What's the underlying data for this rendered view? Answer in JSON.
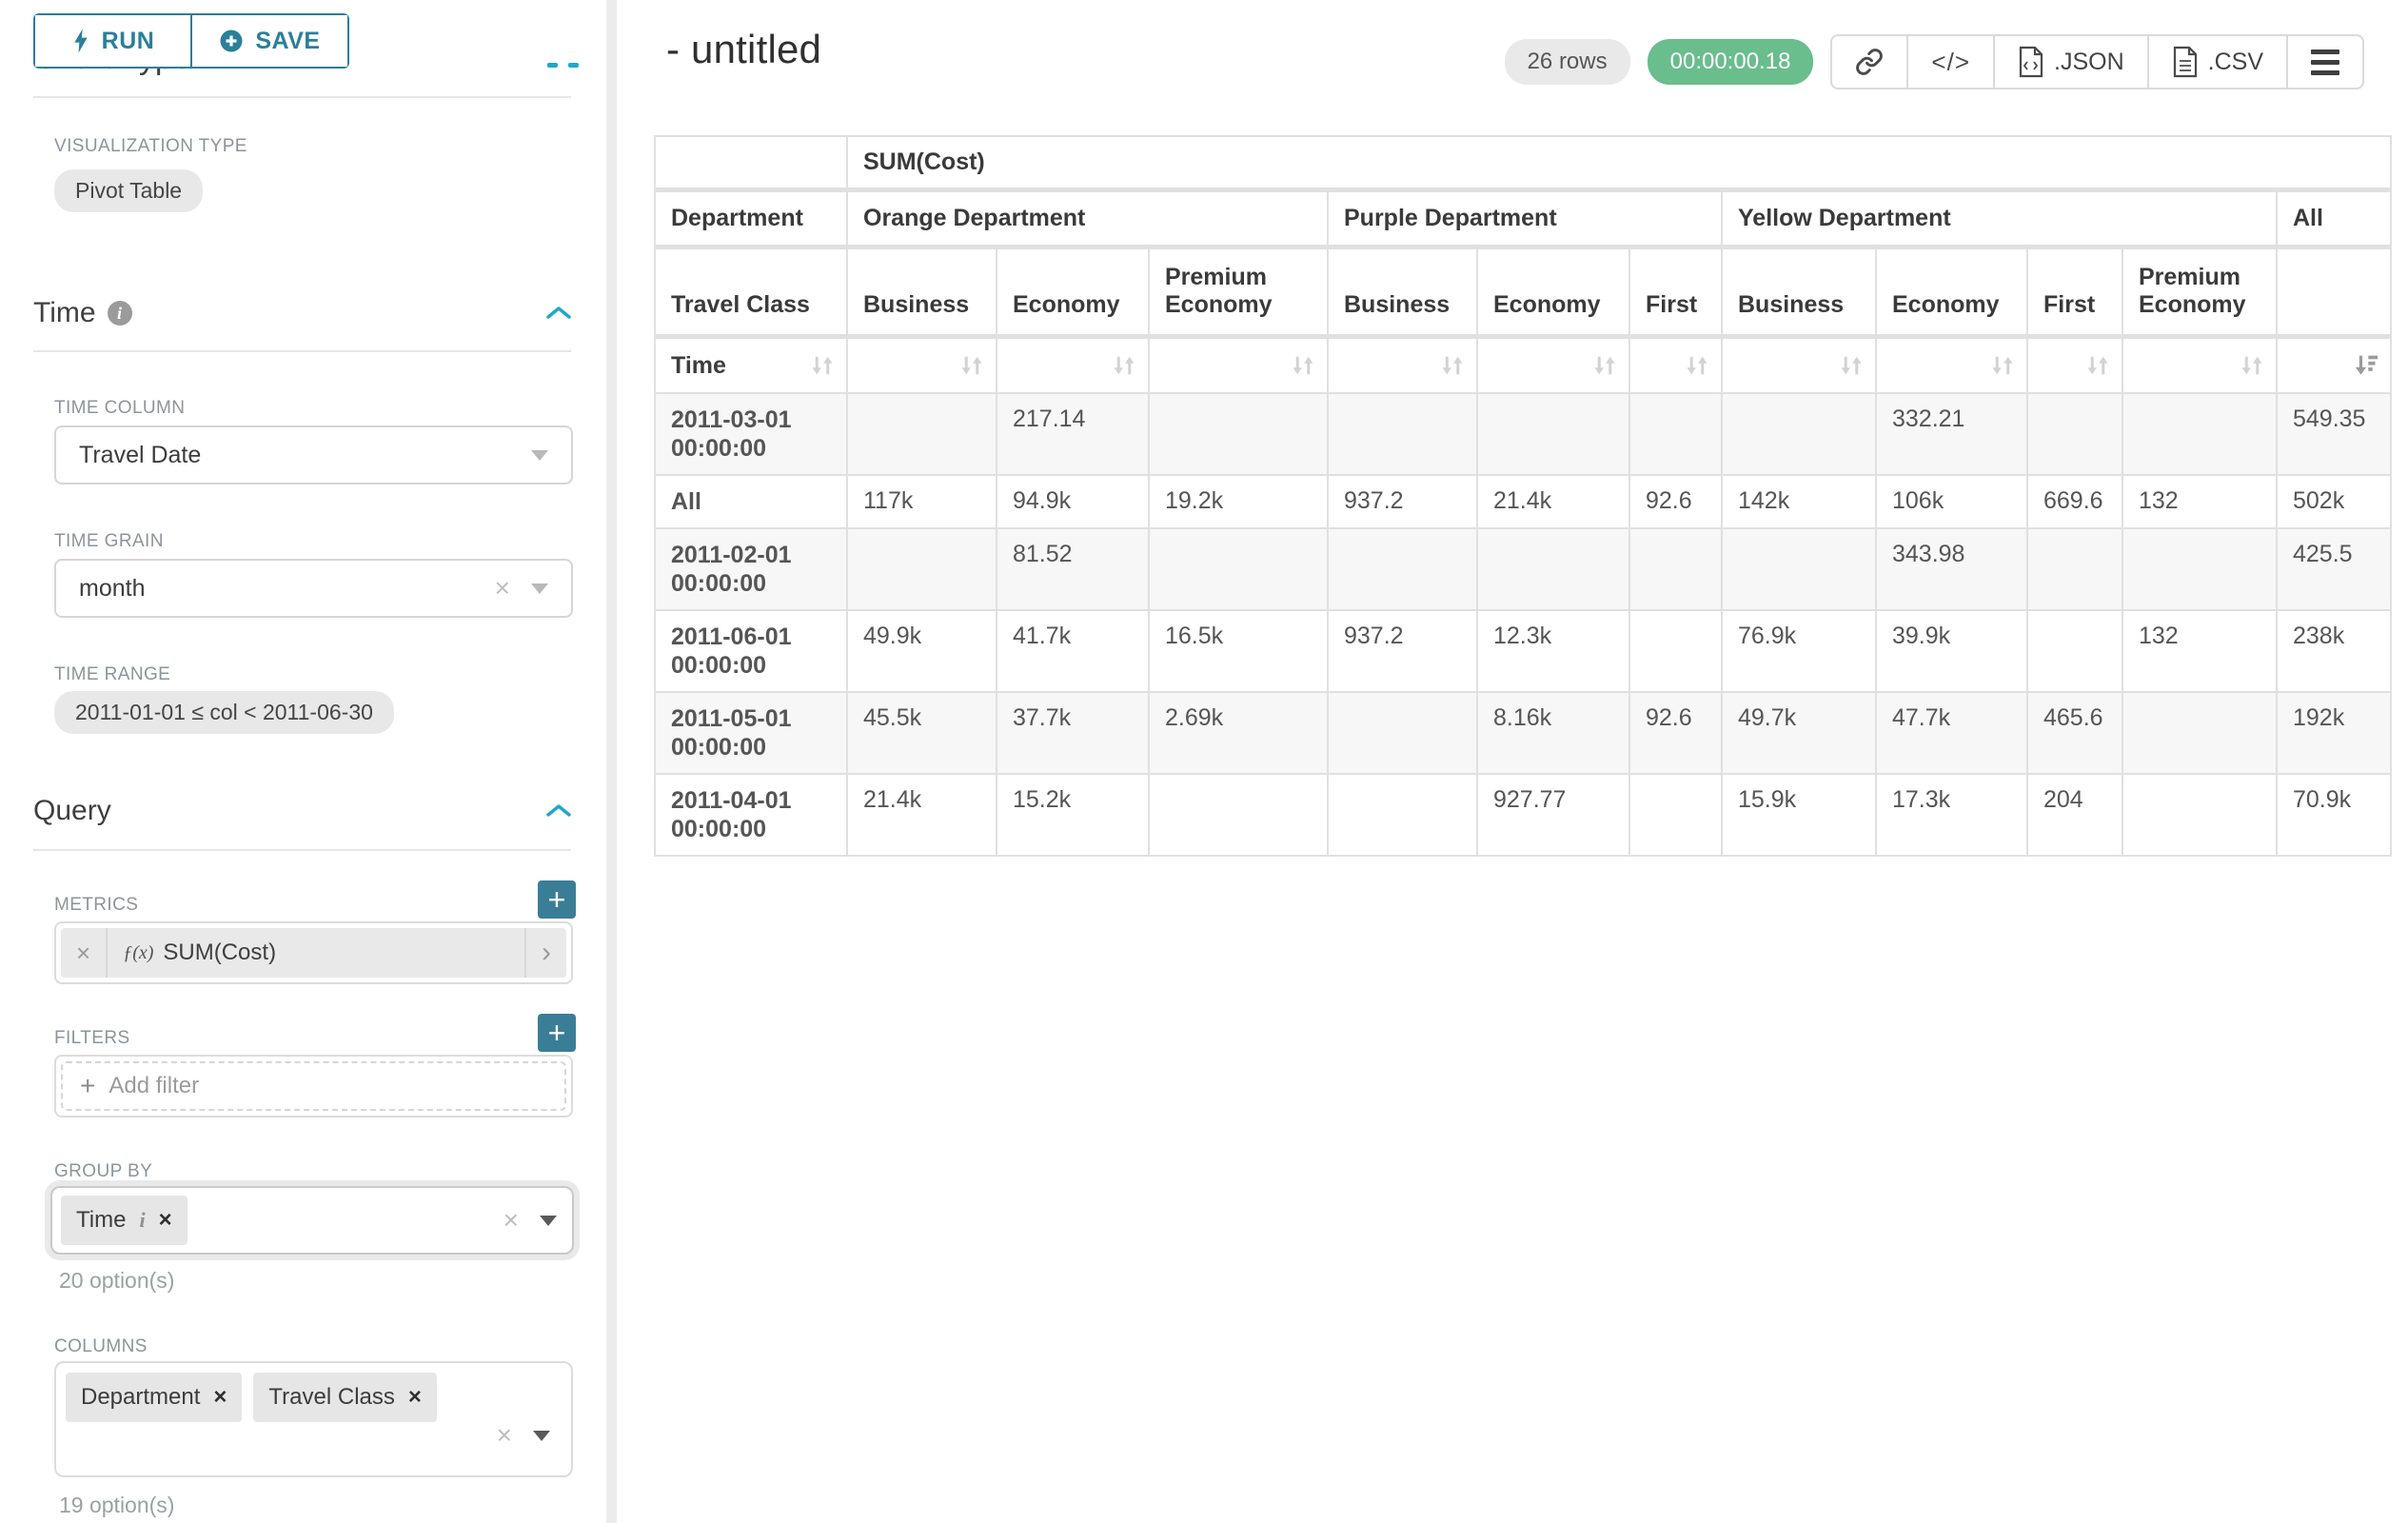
{
  "icons": {
    "close": "×",
    "plus": "+",
    "chevron_right": "›",
    "code": "</>",
    "fx": "ƒ(x)"
  },
  "sidebar": {
    "run_button": "RUN",
    "save_button": "SAVE",
    "scrolled_section_heading": "Chart Type",
    "visualization": {
      "label": "VISUALIZATION TYPE",
      "value": "Pivot Table"
    },
    "time": {
      "heading": "Time",
      "column_label": "TIME COLUMN",
      "column_value": "Travel Date",
      "grain_label": "TIME GRAIN",
      "grain_value": "month",
      "range_label": "TIME RANGE",
      "range_value": "2011-01-01 ≤ col < 2011-06-30"
    },
    "query": {
      "heading": "Query",
      "metrics_label": "METRICS",
      "metric": "SUM(Cost)",
      "filters_label": "FILTERS",
      "add_filter": "Add filter",
      "group_by_label": "GROUP BY",
      "group_by_chips": [
        "Time"
      ],
      "group_by_count": "20 option(s)",
      "columns_label": "COLUMNS",
      "columns_chips": [
        "Department",
        "Travel Class"
      ],
      "columns_count": "19 option(s)"
    }
  },
  "header": {
    "title": "- untitled",
    "rows_badge": "26 rows",
    "timer": "00:00:00.18",
    "json_label": ".JSON",
    "csv_label": ".CSV"
  },
  "pivot_table": {
    "metric_header": "SUM(Cost)",
    "row_dimension": "Time",
    "col_dimension_1": "Department",
    "col_dimension_2": "Travel Class",
    "groups": [
      {
        "name": "Orange Department",
        "cols": [
          "Business",
          "Economy",
          "Premium Economy"
        ]
      },
      {
        "name": "Purple Department",
        "cols": [
          "Business",
          "Economy",
          "First"
        ]
      },
      {
        "name": "Yellow Department",
        "cols": [
          "Business",
          "Economy",
          "First",
          "Premium Economy"
        ]
      },
      {
        "name": "All",
        "cols": [
          ""
        ]
      }
    ],
    "rows": [
      {
        "label": "2011-03-01 00:00:00",
        "values": [
          "",
          "217.14",
          "",
          "",
          "",
          "",
          "",
          "332.21",
          "",
          "",
          "549.35"
        ]
      },
      {
        "label": "All",
        "values": [
          "117k",
          "94.9k",
          "19.2k",
          "937.2",
          "21.4k",
          "92.6",
          "142k",
          "106k",
          "669.6",
          "132",
          "502k"
        ]
      },
      {
        "label": "2011-02-01 00:00:00",
        "values": [
          "",
          "81.52",
          "",
          "",
          "",
          "",
          "",
          "343.98",
          "",
          "",
          "425.5"
        ]
      },
      {
        "label": "2011-06-01 00:00:00",
        "values": [
          "49.9k",
          "41.7k",
          "16.5k",
          "937.2",
          "12.3k",
          "",
          "76.9k",
          "39.9k",
          "",
          "132",
          "238k"
        ]
      },
      {
        "label": "2011-05-01 00:00:00",
        "values": [
          "45.5k",
          "37.7k",
          "2.69k",
          "",
          "8.16k",
          "92.6",
          "49.7k",
          "47.7k",
          "465.6",
          "",
          "192k"
        ]
      },
      {
        "label": "2011-04-01 00:00:00",
        "values": [
          "21.4k",
          "15.2k",
          "",
          "",
          "927.77",
          "",
          "15.9k",
          "17.3k",
          "204",
          "",
          "70.9k"
        ]
      }
    ]
  }
}
